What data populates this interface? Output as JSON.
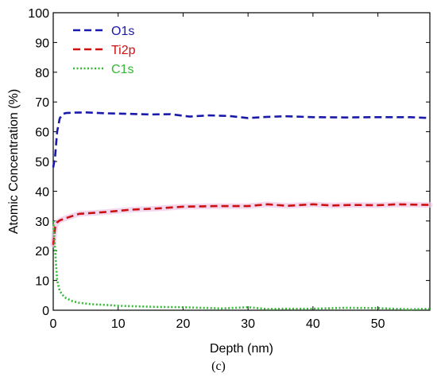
{
  "chart_data": {
    "type": "line",
    "xlabel": "Depth (nm)",
    "ylabel": "Atomic Concentration (%)",
    "xlim": [
      0,
      58
    ],
    "ylim": [
      0,
      100
    ],
    "x_ticks": [
      0,
      10,
      20,
      30,
      40,
      50
    ],
    "y_ticks": [
      0,
      10,
      20,
      30,
      40,
      50,
      60,
      70,
      80,
      90,
      100
    ],
    "grid": false,
    "legend_position": "top-left",
    "series": [
      {
        "name": "O1s",
        "color": "#1a1aaa",
        "style": "dashed",
        "x": [
          0,
          0.3,
          0.6,
          1,
          1.5,
          2,
          3,
          5,
          8,
          12,
          15,
          18,
          21,
          24,
          27,
          30,
          33,
          36,
          40,
          45,
          50,
          55,
          58
        ],
        "y": [
          48,
          52,
          60,
          64.5,
          66,
          66.3,
          66.4,
          66.5,
          66.2,
          66.0,
          65.8,
          65.9,
          65.1,
          65.5,
          65.3,
          64.6,
          65.0,
          65.2,
          64.9,
          64.8,
          64.9,
          64.9,
          64.6
        ]
      },
      {
        "name": "Ti2p",
        "color": "#cc1111",
        "style": "dashed",
        "x": [
          0,
          0.3,
          0.6,
          1,
          2,
          4,
          8,
          12,
          16,
          20,
          25,
          30,
          33,
          36,
          40,
          43,
          46,
          50,
          53,
          58
        ],
        "y": [
          22,
          28,
          29.5,
          30.2,
          31,
          32.4,
          33.0,
          33.8,
          34.2,
          34.8,
          35.0,
          35.0,
          35.6,
          35.1,
          35.6,
          35.2,
          35.4,
          35.3,
          35.6,
          35.4
        ]
      },
      {
        "name": "C1s",
        "color": "#33bb33",
        "style": "dotted",
        "x": [
          0,
          0.3,
          0.6,
          1,
          1.5,
          2,
          3,
          4,
          6,
          8,
          10,
          13,
          16,
          20,
          23,
          26,
          29,
          30,
          33,
          36,
          40,
          45,
          50,
          55,
          58
        ],
        "y": [
          30,
          20,
          10,
          6.5,
          5,
          4,
          3,
          2.5,
          2.0,
          1.8,
          1.5,
          1.3,
          1.1,
          1.0,
          0.8,
          0.6,
          0.9,
          1.0,
          0.4,
          0.5,
          0.5,
          0.8,
          0.7,
          0.3,
          0.5
        ]
      }
    ]
  },
  "caption": "(c)"
}
